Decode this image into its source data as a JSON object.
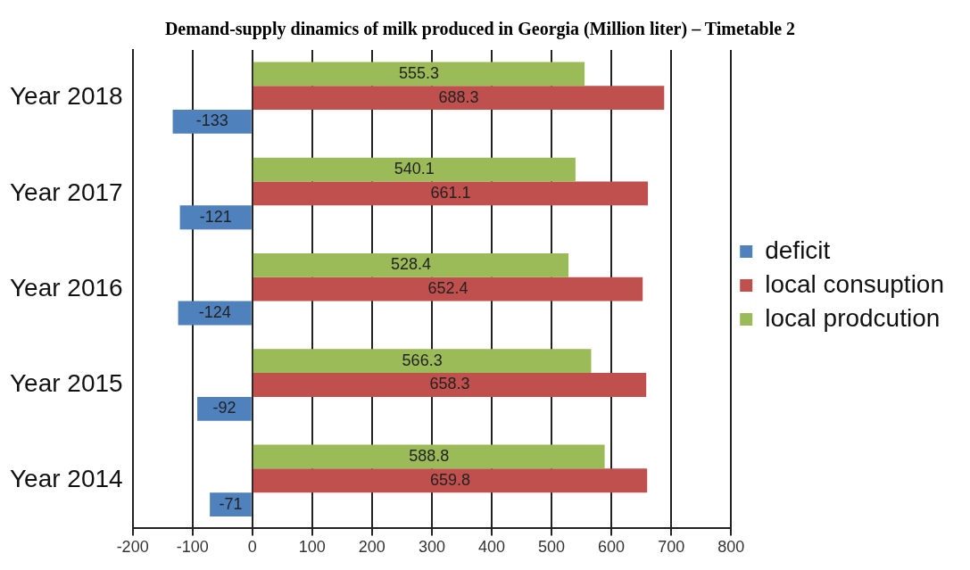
{
  "chart_data": {
    "type": "bar",
    "orientation": "horizontal",
    "title": "Demand-supply dinamics of milk produced in Georgia (Million liter) – Timetable 2",
    "categories": [
      "Year 2018",
      "Year 2017",
      "Year 2016",
      "Year 2015",
      "Year 2014"
    ],
    "series": [
      {
        "name": "deficit",
        "color": "#4f81bd",
        "values": [
          -133,
          -121,
          -124,
          -92,
          -71
        ]
      },
      {
        "name": "local consuption",
        "color": "#c0504d",
        "values": [
          688.3,
          661.1,
          652.4,
          658.3,
          659.8
        ]
      },
      {
        "name": "local prodcution",
        "color": "#9bbb59",
        "values": [
          555.3,
          540.1,
          528.4,
          566.3,
          588.8
        ]
      }
    ],
    "xlim": [
      -200,
      800
    ],
    "xticks": [
      -200,
      -100,
      0,
      100,
      200,
      300,
      400,
      500,
      600,
      700,
      800
    ],
    "grid": "x",
    "legend": "right",
    "data_labels": true
  }
}
